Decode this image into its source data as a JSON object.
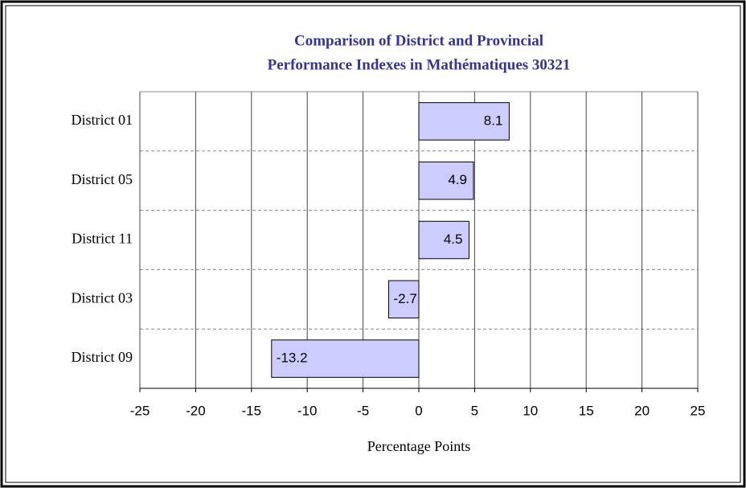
{
  "chart_data": {
    "type": "barh",
    "title": [
      "Comparison of District and Provincial",
      "Performance Indexes in Mathématiques 30321"
    ],
    "categories": [
      "District 01",
      "District 05",
      "District 11",
      "District 03",
      "District 09"
    ],
    "values": [
      8.1,
      4.9,
      4.5,
      -2.7,
      -13.2
    ],
    "color": "#ccccff",
    "xlabel": "Percentage Points",
    "xlim": [
      -25,
      25
    ],
    "xticks": [
      -25,
      -20,
      -15,
      -10,
      -5,
      0,
      5,
      10,
      15,
      20,
      25
    ],
    "grid": true
  }
}
